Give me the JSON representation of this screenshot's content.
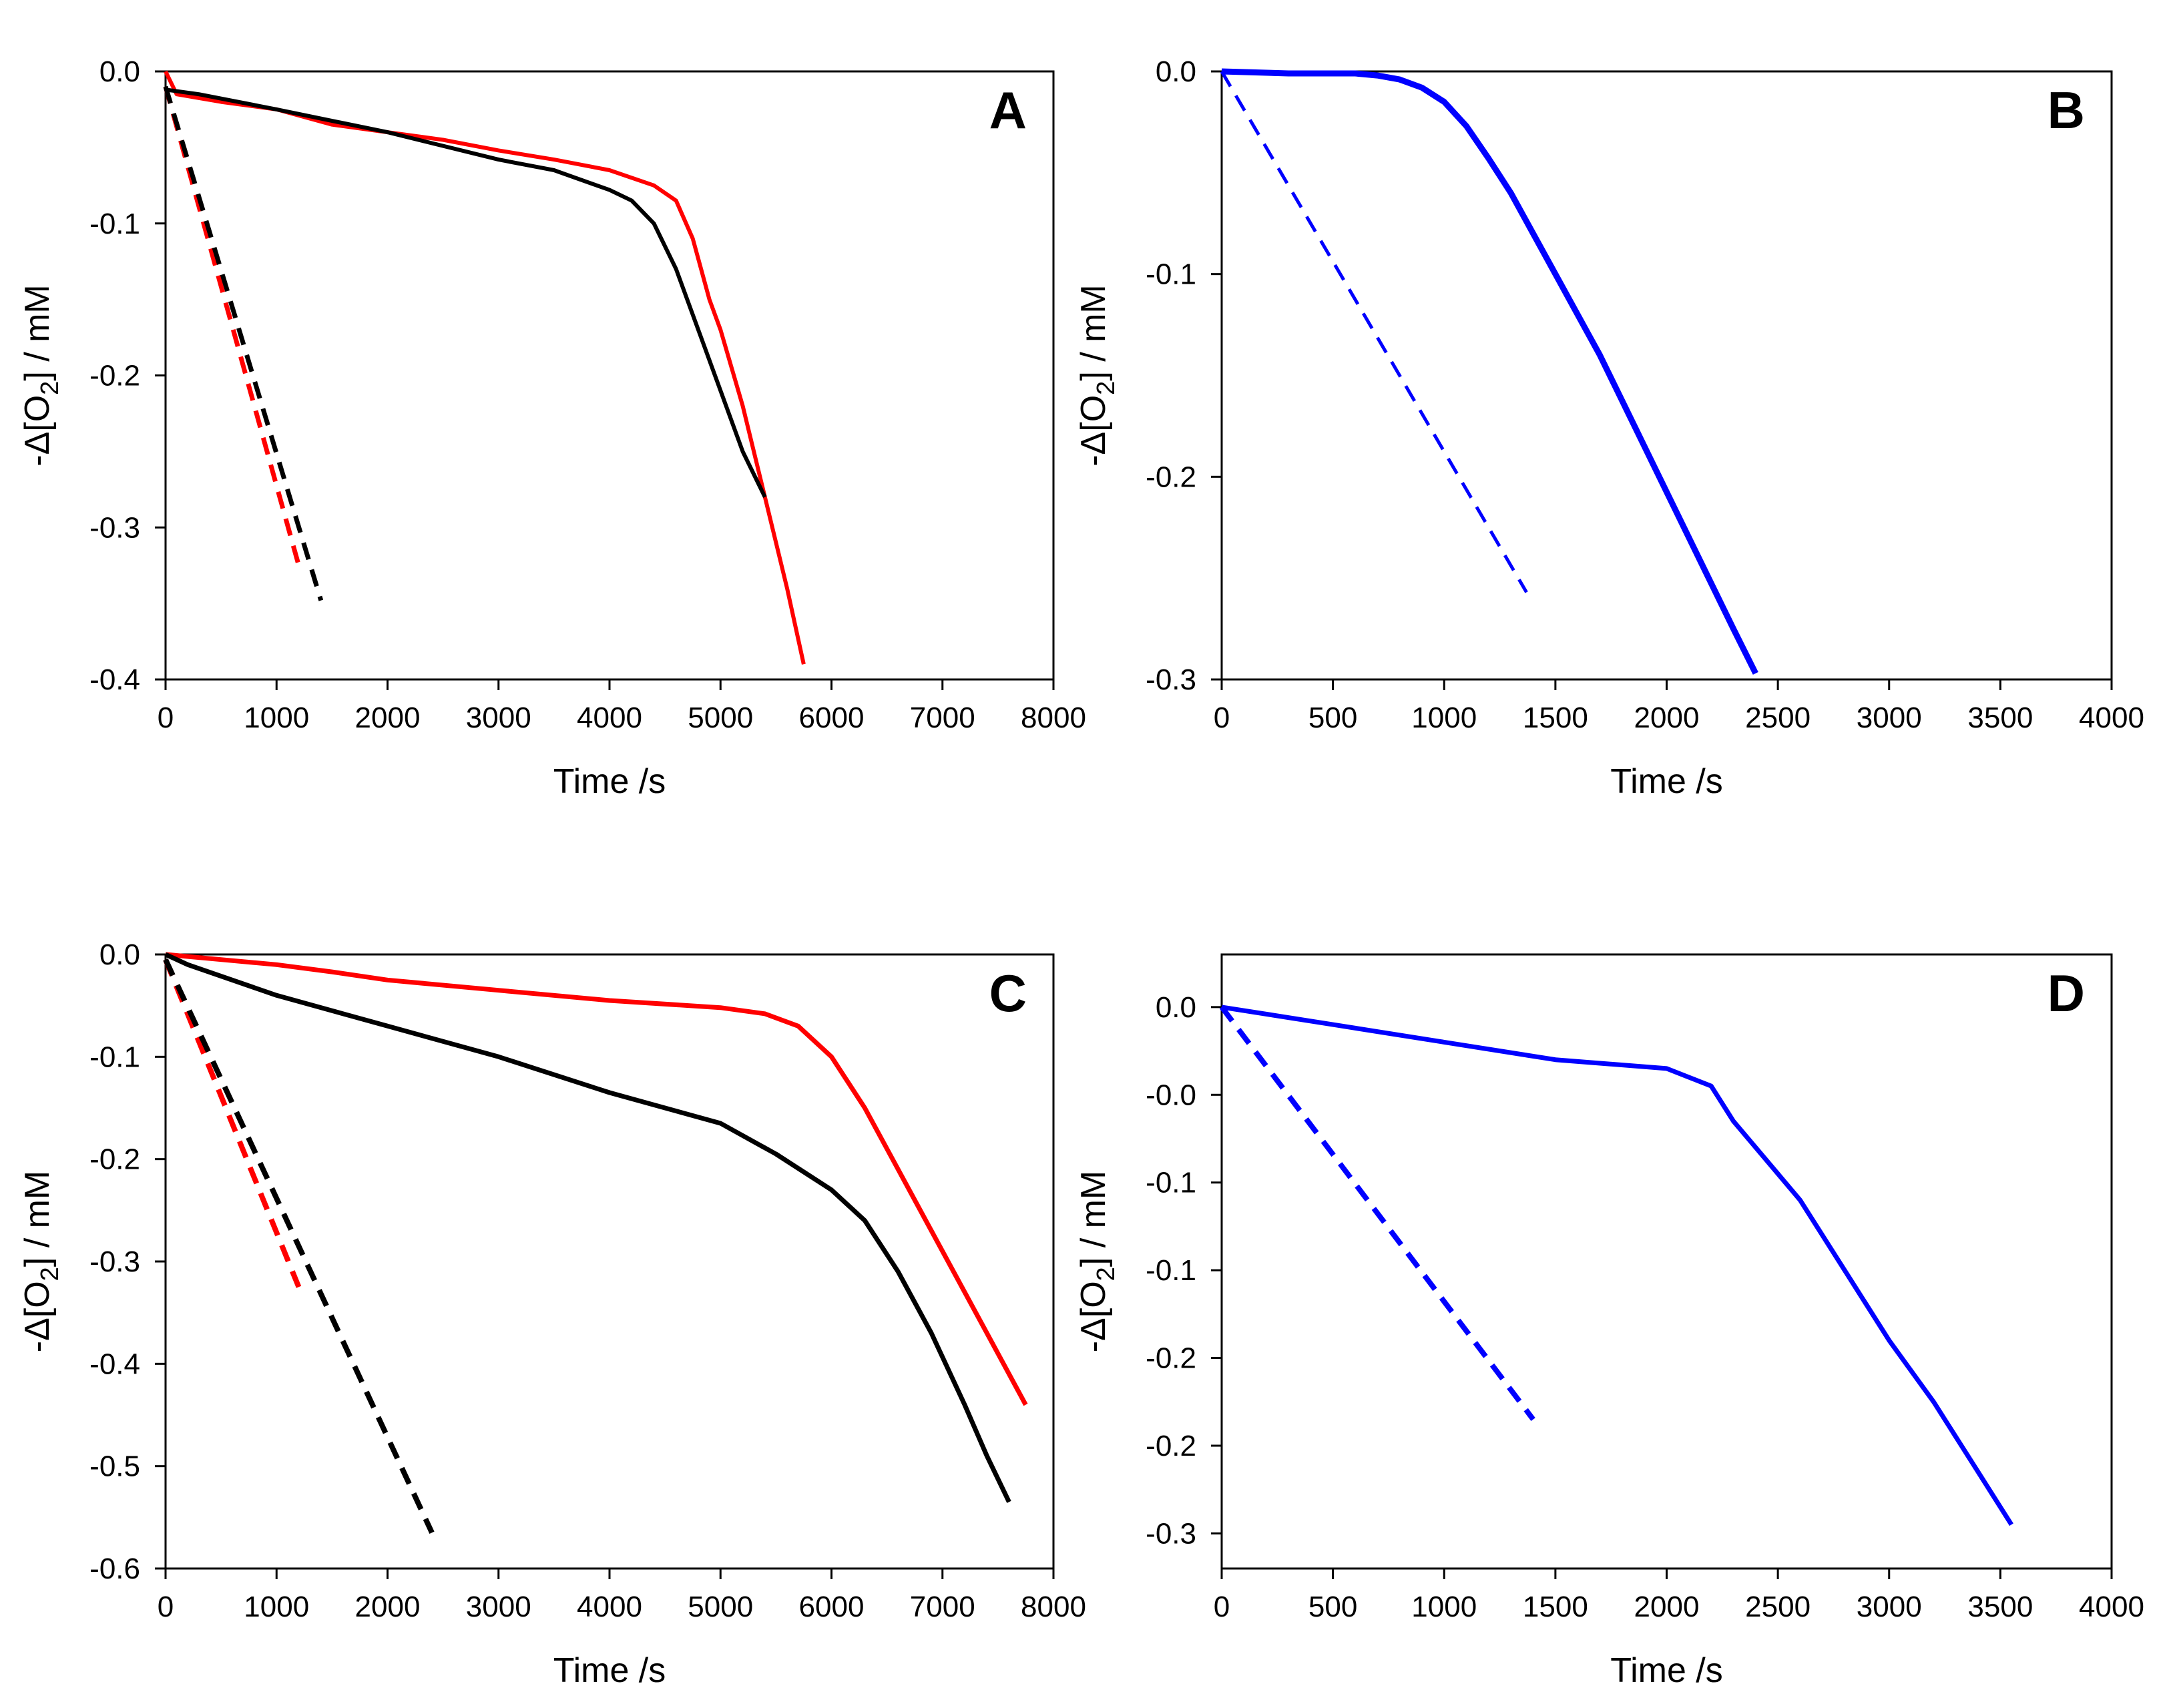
{
  "colors": {
    "red": "#ff0000",
    "black": "#000000",
    "blue": "#0000ff"
  },
  "chart_data": [
    {
      "panel": "A",
      "type": "line",
      "xlabel": "Time /s",
      "ylabel_main": "-Δ[O",
      "ylabel_sub": "2",
      "ylabel_tail": "] / mM",
      "xlim": [
        0,
        8000
      ],
      "ylim": [
        -0.4,
        0.0
      ],
      "xticks": [
        0,
        1000,
        2000,
        3000,
        4000,
        5000,
        6000,
        7000,
        8000
      ],
      "xtick_labels": [
        "0",
        "1000",
        "2000",
        "3000",
        "4000",
        "5000",
        "6000",
        "7000",
        "8000"
      ],
      "yticks": [
        0.0,
        -0.1,
        -0.2,
        -0.3,
        -0.4
      ],
      "ytick_labels": [
        "0.0",
        "-0.1",
        "-0.2",
        "-0.3",
        "-0.4"
      ],
      "series": [
        {
          "color": "#ff0000",
          "dashed": false,
          "width": 6,
          "x": [
            0,
            100,
            500,
            1000,
            1500,
            2000,
            2500,
            3000,
            3500,
            4000,
            4400,
            4600,
            4750,
            4900,
            5000,
            5200,
            5400,
            5600,
            5750
          ],
          "y": [
            0.0,
            -0.015,
            -0.02,
            -0.025,
            -0.035,
            -0.04,
            -0.045,
            -0.052,
            -0.058,
            -0.065,
            -0.075,
            -0.085,
            -0.11,
            -0.15,
            -0.17,
            -0.22,
            -0.28,
            -0.34,
            -0.39
          ]
        },
        {
          "color": "#000000",
          "dashed": false,
          "width": 6,
          "x": [
            0,
            300,
            1000,
            2000,
            3000,
            3500,
            4000,
            4200,
            4400,
            4600,
            4800,
            5000,
            5200,
            5400
          ],
          "y": [
            -0.012,
            -0.015,
            -0.025,
            -0.04,
            -0.058,
            -0.065,
            -0.078,
            -0.085,
            -0.1,
            -0.13,
            -0.17,
            -0.21,
            -0.25,
            -0.28
          ]
        },
        {
          "color": "#ff0000",
          "dashed": true,
          "width": 7,
          "x": [
            0,
            1200
          ],
          "y": [
            -0.01,
            -0.325
          ]
        },
        {
          "color": "#000000",
          "dashed": true,
          "width": 7,
          "x": [
            0,
            1400
          ],
          "y": [
            -0.01,
            -0.348
          ]
        }
      ]
    },
    {
      "panel": "B",
      "type": "line",
      "xlabel": "Time /s",
      "ylabel_main": "-Δ[O",
      "ylabel_sub": "2",
      "ylabel_tail": "] / mM",
      "xlim": [
        0,
        4000
      ],
      "ylim": [
        -0.3,
        0.0
      ],
      "xticks": [
        0,
        500,
        1000,
        1500,
        2000,
        2500,
        3000,
        3500,
        4000
      ],
      "xtick_labels": [
        "0",
        "500",
        "1000",
        "1500",
        "2000",
        "2500",
        "3000",
        "3500",
        "4000"
      ],
      "yticks": [
        0.0,
        -0.1,
        -0.2,
        -0.3
      ],
      "ytick_labels": [
        "0.0",
        "-0.1",
        "-0.2",
        "-0.3"
      ],
      "series": [
        {
          "color": "#0000ff",
          "dashed": false,
          "width": 9,
          "x": [
            0,
            300,
            600,
            700,
            800,
            900,
            1000,
            1100,
            1200,
            1300,
            1500,
            1700,
            1900,
            2100,
            2300,
            2400
          ],
          "y": [
            0.0,
            -0.001,
            -0.001,
            -0.002,
            -0.004,
            -0.008,
            -0.015,
            -0.027,
            -0.043,
            -0.06,
            -0.1,
            -0.14,
            -0.185,
            -0.23,
            -0.275,
            -0.297
          ]
        },
        {
          "color": "#0000ff",
          "dashed": true,
          "width": 5,
          "x": [
            0,
            1370
          ],
          "y": [
            0.0,
            -0.257
          ]
        }
      ]
    },
    {
      "panel": "C",
      "type": "line",
      "xlabel": "Time /s",
      "ylabel_main": "-Δ[O",
      "ylabel_sub": "2",
      "ylabel_tail": "] / mM",
      "xlim": [
        0,
        8000
      ],
      "ylim": [
        -0.6,
        0.0
      ],
      "xticks": [
        0,
        1000,
        2000,
        3000,
        4000,
        5000,
        6000,
        7000,
        8000
      ],
      "xtick_labels": [
        "0",
        "1000",
        "2000",
        "3000",
        "4000",
        "5000",
        "6000",
        "7000",
        "8000"
      ],
      "yticks": [
        0.0,
        -0.1,
        -0.2,
        -0.3,
        -0.4,
        -0.5,
        -0.6
      ],
      "ytick_labels": [
        "0.0",
        "-0.1",
        "-0.2",
        "-0.3",
        "-0.4",
        "-0.5",
        "-0.6"
      ],
      "series": [
        {
          "color": "#ff0000",
          "dashed": false,
          "width": 7,
          "x": [
            0,
            500,
            1000,
            1500,
            2000,
            3000,
            4000,
            5000,
            5400,
            5700,
            6000,
            6300,
            6600,
            7000,
            7400,
            7750
          ],
          "y": [
            0.0,
            -0.005,
            -0.01,
            -0.017,
            -0.025,
            -0.035,
            -0.045,
            -0.052,
            -0.058,
            -0.07,
            -0.1,
            -0.15,
            -0.21,
            -0.29,
            -0.37,
            -0.44
          ]
        },
        {
          "color": "#000000",
          "dashed": false,
          "width": 7,
          "x": [
            0,
            200,
            1000,
            2000,
            3000,
            4000,
            5000,
            5500,
            6000,
            6300,
            6600,
            6900,
            7200,
            7400,
            7600
          ],
          "y": [
            0.0,
            -0.01,
            -0.04,
            -0.07,
            -0.1,
            -0.135,
            -0.165,
            -0.195,
            -0.23,
            -0.26,
            -0.31,
            -0.37,
            -0.44,
            -0.49,
            -0.535
          ]
        },
        {
          "color": "#ff0000",
          "dashed": true,
          "width": 8,
          "x": [
            0,
            1200
          ],
          "y": [
            -0.005,
            -0.325
          ]
        },
        {
          "color": "#000000",
          "dashed": true,
          "width": 8,
          "x": [
            0,
            2400
          ],
          "y": [
            -0.005,
            -0.565
          ]
        }
      ]
    },
    {
      "panel": "D",
      "type": "line",
      "xlabel": "Time /s",
      "ylabel_main": "-Δ[O",
      "ylabel_sub": "2",
      "ylabel_tail": "] / mM",
      "xlim": [
        0,
        4000
      ],
      "ylim": [
        -0.32,
        0.03
      ],
      "xticks": [
        0,
        500,
        1000,
        1500,
        2000,
        2500,
        3000,
        3500,
        4000
      ],
      "xtick_labels": [
        "0",
        "500",
        "1000",
        "1500",
        "2000",
        "2500",
        "3000",
        "3500",
        "4000"
      ],
      "yticks": [
        0.0,
        -0.05,
        -0.1,
        -0.15,
        -0.2,
        -0.25,
        -0.3
      ],
      "ytick_labels": [
        "0.0",
        "-0.0",
        "-0.1",
        "-0.1",
        "-0.2",
        "-0.2",
        "-0.3"
      ],
      "series": [
        {
          "color": "#0000ff",
          "dashed": false,
          "width": 7,
          "x": [
            0,
            500,
            1000,
            1500,
            2000,
            2100,
            2200,
            2300,
            2400,
            2600,
            2800,
            3000,
            3200,
            3400,
            3550
          ],
          "y": [
            0.0,
            -0.01,
            -0.02,
            -0.03,
            -0.035,
            -0.04,
            -0.045,
            -0.065,
            -0.08,
            -0.11,
            -0.15,
            -0.19,
            -0.225,
            -0.265,
            -0.295
          ]
        },
        {
          "color": "#0000ff",
          "dashed": true,
          "width": 8,
          "x": [
            0,
            1400
          ],
          "y": [
            0.0,
            -0.235
          ]
        }
      ]
    }
  ]
}
